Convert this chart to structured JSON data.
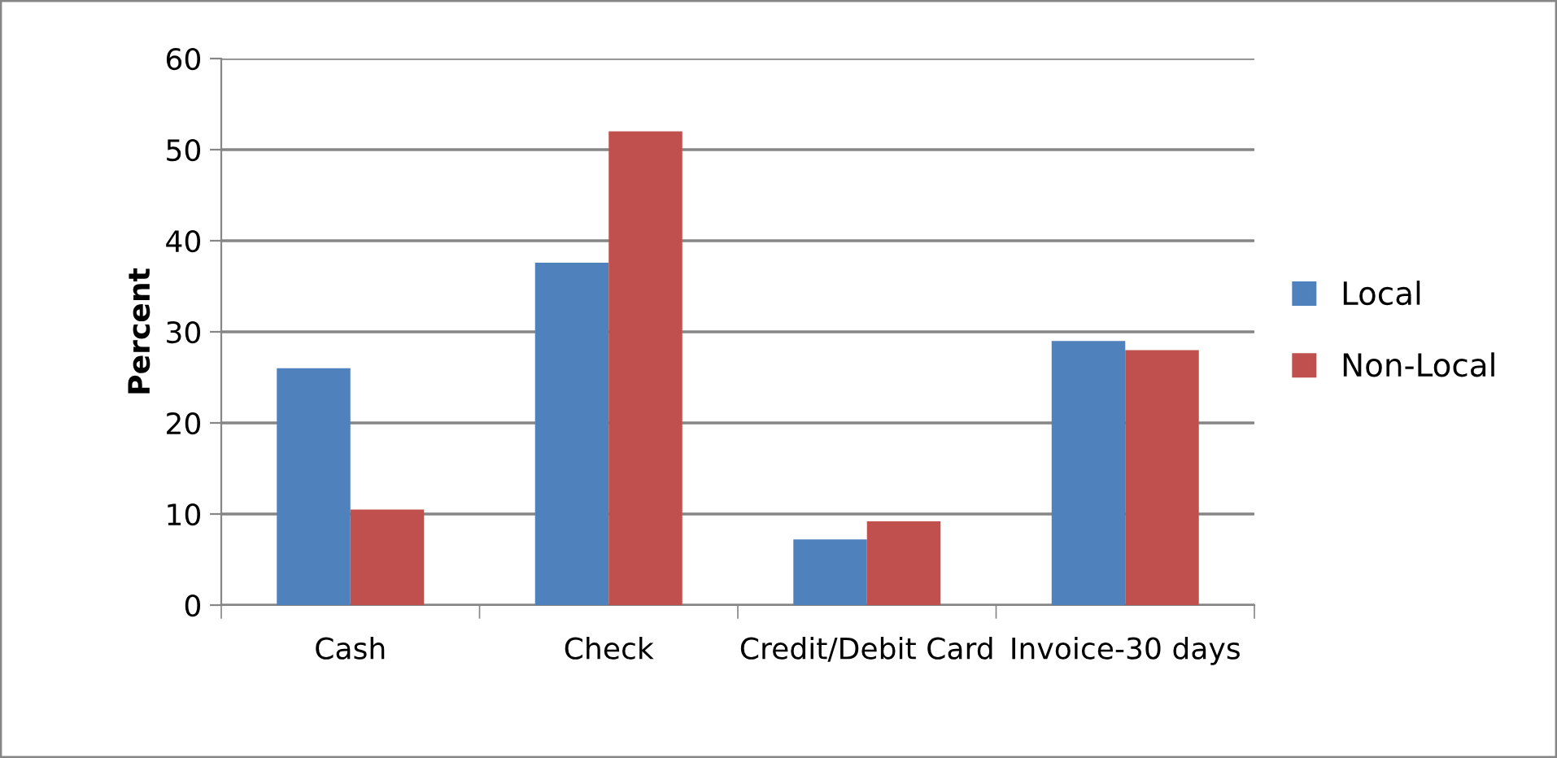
{
  "chart_data": {
    "type": "bar",
    "ylabel": "Percent",
    "categories": [
      "Cash",
      "Check",
      "Credit/Debit Card",
      "Invoice-30 days"
    ],
    "series": [
      {
        "name": "Local",
        "color": "#4f81bd",
        "values": [
          26,
          37.6,
          7.2,
          29
        ]
      },
      {
        "name": "Non-Local",
        "color": "#c0504d",
        "values": [
          10.5,
          52,
          9.2,
          28
        ]
      }
    ],
    "ylim": [
      0,
      60
    ],
    "yticks": [
      0,
      10,
      20,
      30,
      40,
      50,
      60
    ],
    "grid": "y",
    "legend": "right"
  }
}
